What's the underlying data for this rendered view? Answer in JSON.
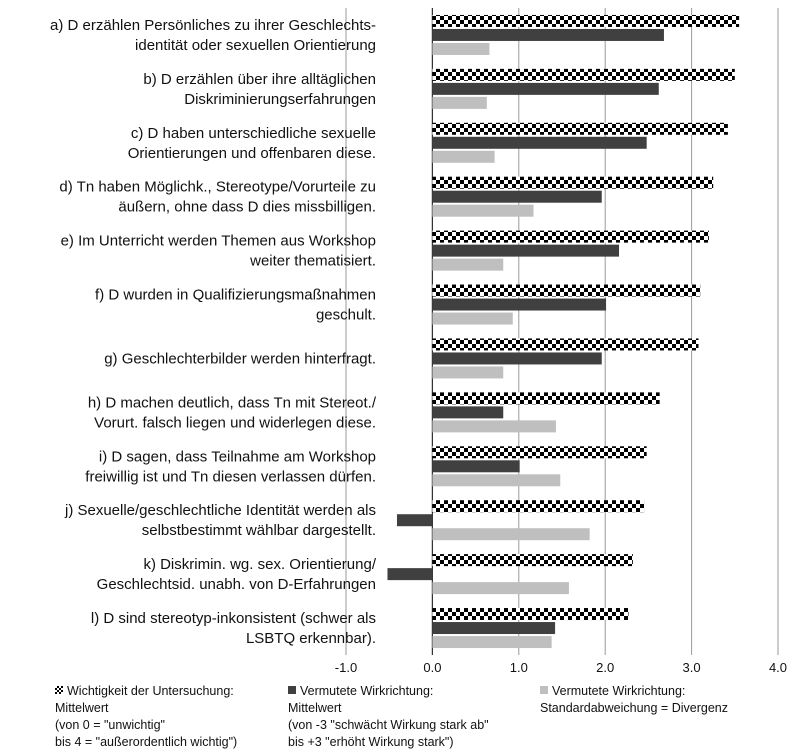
{
  "chart_data": {
    "type": "bar",
    "orientation": "horizontal",
    "categories": [
      [
        "a) D erzählen Persönliches zu ihrer Geschlechts-",
        "identität oder sexuellen Orientierung"
      ],
      [
        "b) D erzählen über ihre alltäglichen",
        "Diskriminierungserfahrungen"
      ],
      [
        "c) D haben unterschiedliche sexuelle",
        "Orientierungen und offenbaren diese."
      ],
      [
        "d) Tn haben Möglichk., Stereotype/Vorurteile zu",
        "äußern, ohne dass D dies missbilligen."
      ],
      [
        "e) Im Unterricht werden Themen aus Workshop",
        "weiter thematisiert."
      ],
      [
        "f) D wurden in Qualifizierungsmaßnahmen",
        "geschult."
      ],
      [
        "g) Geschlechterbilder werden hinterfragt."
      ],
      [
        "h) D machen deutlich, dass Tn mit Stereot./",
        "Vorurt. falsch liegen und widerlegen diese."
      ],
      [
        "i) D sagen, dass Teilnahme am Workshop",
        "freiwillig ist und Tn diesen verlassen dürfen."
      ],
      [
        "j) Sexuelle/geschlechtliche Identität werden als",
        "selbstbestimmt wählbar dargestellt."
      ],
      [
        "k) Diskrimin. wg. sex. Orientierung/",
        "Geschlechtsid. unabh. von D-Erfahrungen"
      ],
      [
        "l) D sind stereotyp-inkonsistent (schwer als",
        "LSBTQ erkennbar)."
      ]
    ],
    "series": [
      {
        "name": "Wichtigkeit der Untersuchung: Mittelwert",
        "legend_lines": [
          "Wichtigkeit der Untersuchung:",
          "Mittelwert",
          "(von 0 = \"unwichtig\"",
          "bis 4 = \"außerordentlich wichtig\")"
        ],
        "pattern": "checkerboard",
        "color": "#000000",
        "values": [
          3.55,
          3.5,
          3.42,
          3.25,
          3.2,
          3.1,
          3.08,
          2.63,
          2.48,
          2.45,
          2.32,
          2.27
        ]
      },
      {
        "name": "Vermutete Wirkrichtung: Mittelwert",
        "legend_lines": [
          "Vermutete Wirkrichtung:",
          "Mittelwert",
          "(von -3 \"schwächt Wirkung stark ab\"",
          "bis +3 \"erhöht Wirkung stark\")"
        ],
        "pattern": "solid",
        "color": "#404040",
        "values": [
          2.68,
          2.62,
          2.48,
          1.96,
          2.16,
          2.01,
          1.96,
          0.82,
          1.01,
          -0.41,
          -0.52,
          1.42
        ]
      },
      {
        "name": "Vermutete Wirkrichtung: Standardabweichung = Divergenz",
        "legend_lines": [
          "Vermutete Wirkrichtung:",
          "Standardabweichung = Divergenz"
        ],
        "pattern": "solid",
        "color": "#bfbfbf",
        "values": [
          0.66,
          0.63,
          0.72,
          1.17,
          0.82,
          0.93,
          0.82,
          1.43,
          1.48,
          1.82,
          1.58,
          1.38
        ]
      }
    ],
    "xlim": [
      -1.0,
      4.0
    ],
    "xticks": [
      "-1.0",
      "0.0",
      "1.0",
      "2.0",
      "3.0",
      "4.0"
    ],
    "xtick_values": [
      -1,
      0,
      1,
      2,
      3,
      4
    ],
    "grid": true,
    "legend_position": "bottom"
  }
}
